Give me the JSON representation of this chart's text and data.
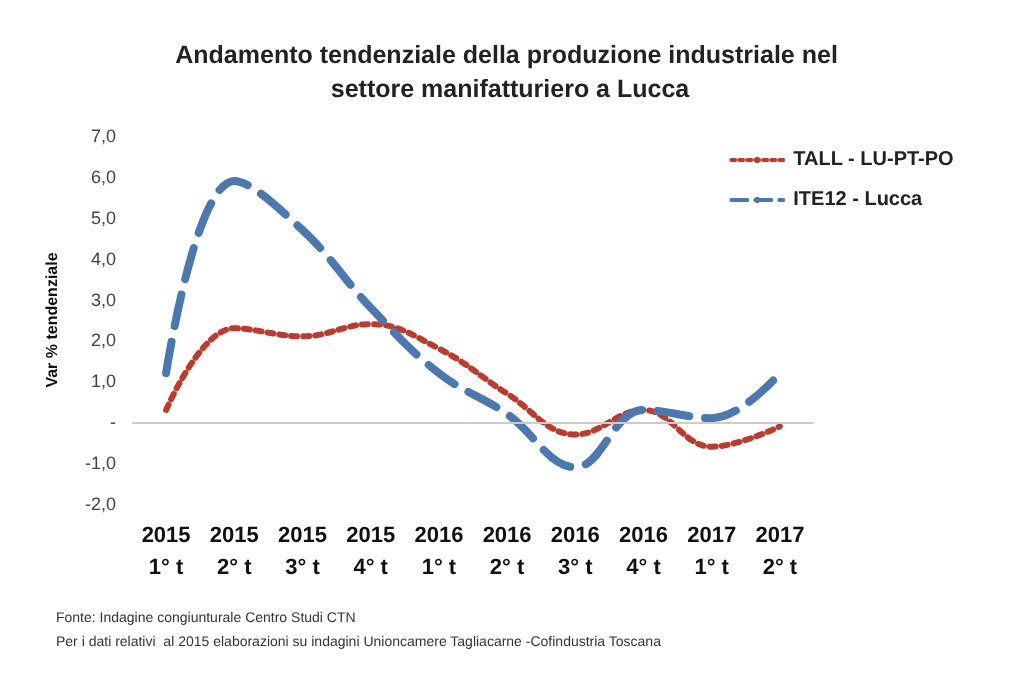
{
  "chart_data": {
    "type": "line",
    "title": "Andamento tendenziale della produzione industriale nel settore manifatturiero a Lucca",
    "ylabel": "Var % tendenziale",
    "categories": [
      "2015\n1° t",
      "2015\n2° t",
      "2015\n3° t",
      "2015\n4° t",
      "2016\n1° t",
      "2016\n2° t",
      "2016\n3° t",
      "2016\n4° t",
      "2017\n1° t",
      "2017\n2° t"
    ],
    "series": [
      {
        "name": "TALL - LU-PT-PO",
        "color": "#c0392b",
        "line_style": "dotted",
        "values": [
          0.3,
          2.3,
          2.1,
          2.4,
          1.8,
          0.7,
          -0.3,
          0.3,
          -0.6,
          -0.1
        ]
      },
      {
        "name": "ITE12 - Lucca",
        "color": "#4a78b0",
        "line_style": "dashed",
        "values": [
          1.2,
          5.9,
          4.7,
          2.8,
          1.2,
          0.2,
          -1.1,
          0.3,
          0.1,
          1.2
        ]
      }
    ],
    "ylim": [
      -2,
      7
    ],
    "yticks": [
      {
        "value": -2,
        "label": "-2,0"
      },
      {
        "value": -1,
        "label": "-1,0"
      },
      {
        "value": 0,
        "label": "-"
      },
      {
        "value": 1,
        "label": "1,0"
      },
      {
        "value": 2,
        "label": "2,0"
      },
      {
        "value": 3,
        "label": "3,0"
      },
      {
        "value": 4,
        "label": "4,0"
      },
      {
        "value": 5,
        "label": "5,0"
      },
      {
        "value": 6,
        "label": "6,0"
      },
      {
        "value": 7,
        "label": "7,0"
      }
    ],
    "ref_lines": [
      {
        "axis": "y",
        "value": 0,
        "color": "#cccccc"
      }
    ],
    "legend": "top right",
    "marker": "none",
    "annotations": [
      "Fonte: Indagine congiunturale Centro Studi CTN",
      "Per i dati relativi  al 2015 elaborazioni su indagini Unioncamere Tagliacarne -Cofindustria Toscana"
    ]
  }
}
